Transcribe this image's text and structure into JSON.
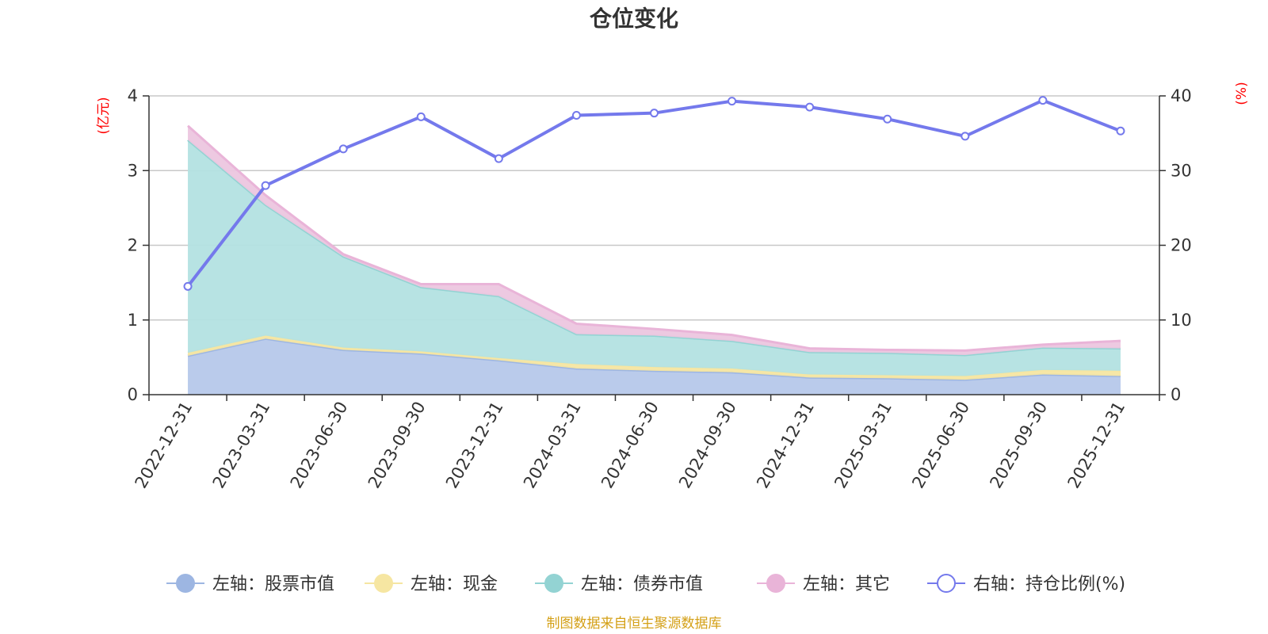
{
  "chart_data": {
    "type": "area",
    "title": "仓位变化",
    "left_axis_unit": "(亿元)",
    "right_axis_unit": "(%)",
    "x": [
      "2022-12-31",
      "2023-03-31",
      "2023-06-30",
      "2023-09-30",
      "2023-12-31",
      "2024-03-31",
      "2024-06-30",
      "2024-09-30",
      "2024-12-31",
      "2025-03-31",
      "2025-06-30",
      "2025-09-30",
      "2025-12-31"
    ],
    "left_ylim": [
      0,
      4
    ],
    "left_yticks": [
      "0",
      "1",
      "2",
      "3",
      "4"
    ],
    "right_ylim": [
      0,
      40
    ],
    "right_yticks": [
      "0",
      "10",
      "20",
      "30",
      "40"
    ],
    "series": [
      {
        "name": "左轴：股票市值",
        "axis": "left",
        "stacked": true,
        "color": "#9db6e2",
        "fill": "#b6c8ea",
        "values": [
          0.52,
          0.75,
          0.6,
          0.55,
          0.46,
          0.35,
          0.32,
          0.3,
          0.23,
          0.22,
          0.2,
          0.27,
          0.25
        ]
      },
      {
        "name": "左轴：现金",
        "axis": "left",
        "stacked": true,
        "color": "#f6e6a2",
        "fill": "#f6e6a2",
        "values": [
          0.04,
          0.04,
          0.03,
          0.03,
          0.03,
          0.06,
          0.05,
          0.05,
          0.04,
          0.04,
          0.05,
          0.06,
          0.07
        ]
      },
      {
        "name": "左轴：债券市值",
        "axis": "left",
        "stacked": true,
        "color": "#93d3d3",
        "fill": "#b3e1e1",
        "values": [
          2.85,
          1.75,
          1.22,
          0.86,
          0.83,
          0.4,
          0.42,
          0.37,
          0.3,
          0.3,
          0.28,
          0.3,
          0.3
        ]
      },
      {
        "name": "左轴：其它",
        "axis": "left",
        "stacked": true,
        "color": "#e9b4d8",
        "fill": "#ecc6df",
        "values": [
          0.19,
          0.13,
          0.03,
          0.04,
          0.16,
          0.14,
          0.09,
          0.08,
          0.05,
          0.04,
          0.06,
          0.04,
          0.1
        ]
      },
      {
        "name": "右轴：持仓比例(%)",
        "axis": "right",
        "type": "line",
        "color": "#7479ec",
        "values": [
          14.5,
          28.0,
          32.9,
          37.2,
          31.6,
          37.4,
          37.7,
          39.3,
          38.5,
          36.9,
          34.6,
          39.4,
          35.3
        ]
      }
    ],
    "legend_position": "bottom"
  },
  "source_note": "制图数据来自恒生聚源数据库"
}
